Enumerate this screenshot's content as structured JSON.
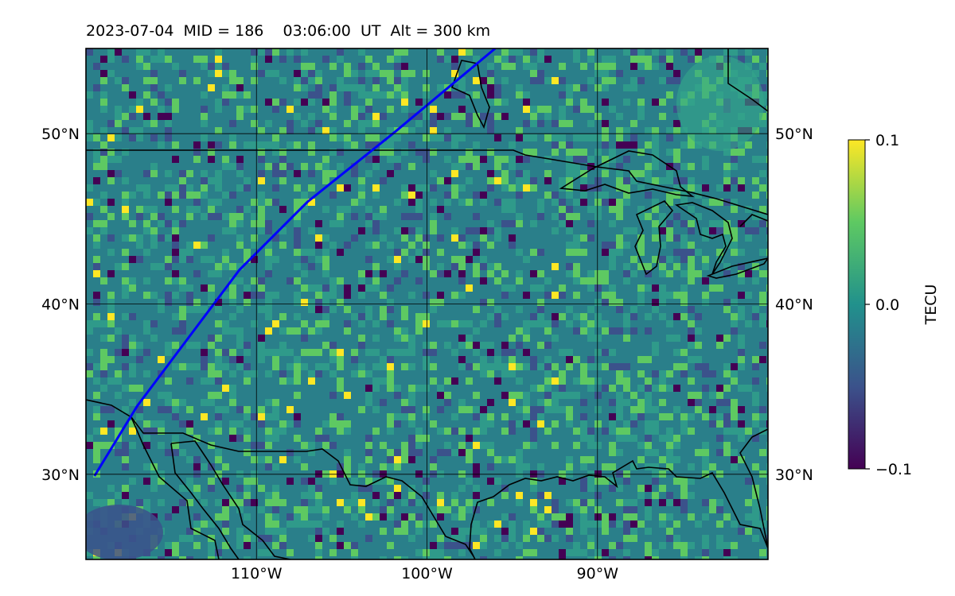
{
  "title": "2023-07-04  MID = 186    03:06:00  UT  Alt = 300 km",
  "map": {
    "lon_range": [
      -120,
      -80
    ],
    "lat_range": [
      25,
      55
    ],
    "lon_ticks": [
      {
        "value": -110,
        "label": "110°W"
      },
      {
        "value": -100,
        "label": "100°W"
      },
      {
        "value": -90,
        "label": "90°W"
      }
    ],
    "lat_ticks": [
      {
        "value": 50,
        "label": "50°N"
      },
      {
        "value": 40,
        "label": "40°N"
      },
      {
        "value": 30,
        "label": "30°N"
      }
    ],
    "colormap": [
      "#440154",
      "#3b528b",
      "#21918c",
      "#5ec962",
      "#fde725"
    ],
    "background_color": "#2a7f8a"
  },
  "track": {
    "color": "#0000ff",
    "points": [
      [
        -119.5,
        29.9
      ],
      [
        -117.0,
        34.0
      ],
      [
        -114.0,
        38.0
      ],
      [
        -111.0,
        42.0
      ],
      [
        -107.0,
        46.0
      ],
      [
        -102.0,
        50.0
      ],
      [
        -96.0,
        55.0
      ]
    ]
  },
  "colorbar": {
    "label": "TECU",
    "min": -0.1,
    "max": 0.1,
    "ticks": [
      {
        "value": 0.1,
        "label": "0.1"
      },
      {
        "value": 0.0,
        "label": "0.0"
      },
      {
        "value": -0.1,
        "label": "−0.1"
      }
    ]
  }
}
